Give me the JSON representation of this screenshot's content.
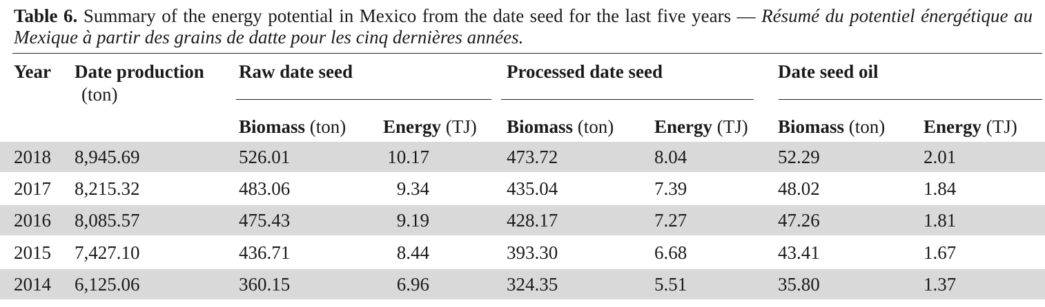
{
  "caption": {
    "label": "Table 6.",
    "english": "Summary of the energy potential in Mexico from the date seed for the last five years",
    "separator": "—",
    "french": "Résumé du potentiel énergétique au Mexique à partir des grains de datte pour les cinq dernières années"
  },
  "headers": {
    "year": "Year",
    "date_production": "Date production",
    "date_production_unit": "(ton)",
    "group1": "Raw date seed",
    "group2": "Processed date seed",
    "group3": "Date seed oil",
    "biomass": "Biomass",
    "biomass_unit": "(ton)",
    "energy": "Energy",
    "energy_unit": "(TJ)"
  },
  "rows": [
    {
      "year": "2018",
      "production": "8,945.69",
      "raw_biomass": "526.01",
      "raw_energy": "10.17",
      "proc_biomass": "473.72",
      "proc_energy": "8.04",
      "oil_biomass": "52.29",
      "oil_energy": "2.01"
    },
    {
      "year": "2017",
      "production": "8,215.32",
      "raw_biomass": "483.06",
      "raw_energy": "9.34",
      "proc_biomass": "435.04",
      "proc_energy": "7.39",
      "oil_biomass": "48.02",
      "oil_energy": "1.84"
    },
    {
      "year": "2016",
      "production": "8,085.57",
      "raw_biomass": "475.43",
      "raw_energy": "9.19",
      "proc_biomass": "428.17",
      "proc_energy": "7.27",
      "oil_biomass": "47.26",
      "oil_energy": "1.81"
    },
    {
      "year": "2015",
      "production": "7,427.10",
      "raw_biomass": "436.71",
      "raw_energy": "8.44",
      "proc_biomass": "393.30",
      "proc_energy": "6.68",
      "oil_biomass": "43.41",
      "oil_energy": "1.67"
    },
    {
      "year": "2014",
      "production": "6,125.06",
      "raw_biomass": "360.15",
      "raw_energy": "6.96",
      "proc_biomass": "324.35",
      "proc_energy": "5.51",
      "oil_biomass": "35.80",
      "oil_energy": "1.37"
    }
  ],
  "colors": {
    "row_shade": "#d9d9d9",
    "text": "#1a1a1a",
    "rule": "#222222"
  }
}
